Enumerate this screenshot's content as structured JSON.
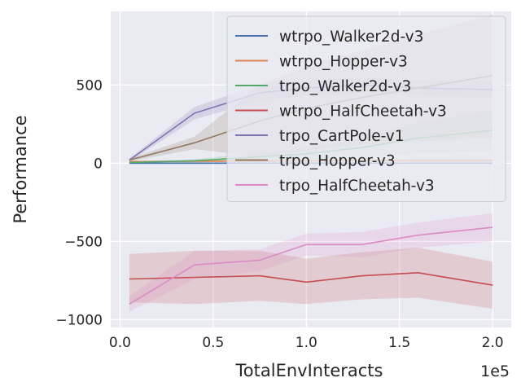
{
  "chart_data": {
    "type": "line",
    "title": "",
    "xlabel": "TotalEnvInteracts",
    "ylabel": "Performance",
    "x_offset_label": "1e5",
    "xlim": [
      -5000,
      210000
    ],
    "ylim": [
      -1050,
      970
    ],
    "x_ticks": [
      0,
      50000,
      100000,
      150000,
      200000
    ],
    "x_tick_labels": [
      "0.0",
      "0.5",
      "1.0",
      "1.5",
      "2.0"
    ],
    "y_ticks": [
      -1000,
      -500,
      0,
      500
    ],
    "y_tick_labels": [
      "−1000",
      "−500",
      "0",
      "500"
    ],
    "grid": true,
    "legend_position": "upper-right",
    "x": [
      5000,
      40000,
      75000,
      100000,
      130000,
      160000,
      200000
    ],
    "series": [
      {
        "name": "wtrpo_Walker2d-v3",
        "color": "#4c72b0",
        "values": [
          0,
          0,
          0,
          0,
          0,
          0,
          0
        ],
        "lower": [
          -5,
          -5,
          -5,
          -5,
          -5,
          -5,
          -5
        ],
        "upper": [
          5,
          5,
          5,
          5,
          5,
          5,
          5
        ]
      },
      {
        "name": "wtrpo_Hopper-v3",
        "color": "#dd8452",
        "values": [
          10,
          12,
          14,
          15,
          16,
          17,
          18
        ],
        "lower": [
          5,
          6,
          7,
          8,
          8,
          8,
          8
        ],
        "upper": [
          15,
          18,
          21,
          22,
          24,
          26,
          28
        ]
      },
      {
        "name": "trpo_Walker2d-v3",
        "color": "#55a868",
        "values": [
          5,
          15,
          40,
          60,
          100,
          160,
          210
        ],
        "lower": [
          0,
          5,
          15,
          25,
          40,
          60,
          80
        ],
        "upper": [
          10,
          25,
          65,
          95,
          160,
          260,
          340
        ]
      },
      {
        "name": "wtrpo_HalfCheetah-v3",
        "color": "#c44e52",
        "values": [
          -740,
          -730,
          -720,
          -760,
          -720,
          -700,
          -780
        ],
        "lower": [
          -890,
          -900,
          -880,
          -900,
          -870,
          -860,
          -930
        ],
        "upper": [
          -580,
          -560,
          -560,
          -610,
          -570,
          -540,
          -630
        ]
      },
      {
        "name": "trpo_CartPole-v1",
        "color": "#8172b3",
        "values": [
          20,
          320,
          450,
          480,
          500,
          480,
          470
        ],
        "lower": [
          10,
          280,
          400,
          430,
          450,
          430,
          420
        ],
        "upper": [
          30,
          360,
          500,
          530,
          550,
          530,
          520
        ]
      },
      {
        "name": "trpo_Hopper-v3",
        "color": "#937860",
        "values": [
          20,
          130,
          270,
          350,
          420,
          480,
          560
        ],
        "lower": [
          10,
          90,
          40,
          80,
          120,
          140,
          160
        ],
        "upper": [
          30,
          170,
          500,
          620,
          720,
          820,
          950
        ]
      },
      {
        "name": "trpo_HalfCheetah-v3",
        "color": "#da8bc3",
        "values": [
          -900,
          -650,
          -620,
          -520,
          -520,
          -460,
          -410
        ],
        "lower": [
          -950,
          -740,
          -690,
          -590,
          -600,
          -540,
          -500
        ],
        "upper": [
          -850,
          -560,
          -550,
          -450,
          -440,
          -380,
          -320
        ]
      }
    ]
  }
}
